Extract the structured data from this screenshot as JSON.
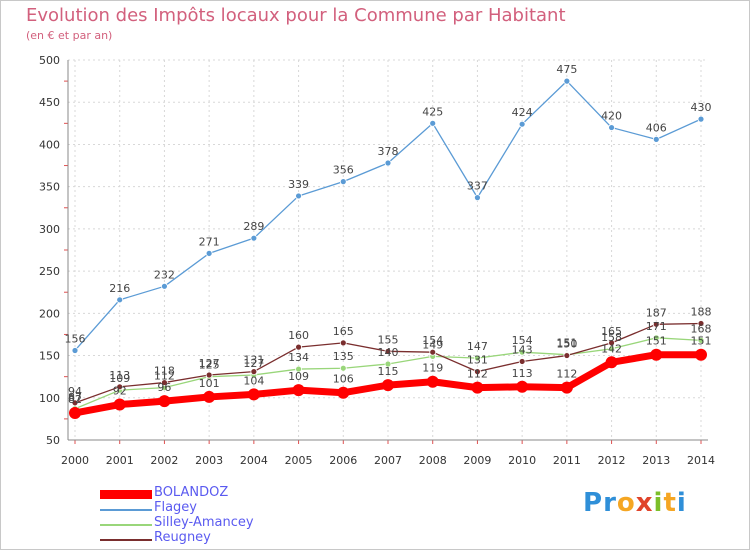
{
  "title": "Evolution des Impôts locaux pour la Commune par Habitant",
  "subtitle": "(en € et par an)",
  "logo": {
    "text": "Proxiti",
    "letters": [
      "P",
      "r",
      "o",
      "x",
      "i",
      "t",
      "i"
    ],
    "colors": [
      "#2f8fd8",
      "#2f8fd8",
      "#f5a623",
      "#e0442b",
      "#7cbf2a",
      "#f5a623",
      "#2f8fd8"
    ]
  },
  "chart_data": {
    "type": "line",
    "x": [
      "2000",
      "2001",
      "2002",
      "2003",
      "2004",
      "2005",
      "2006",
      "2007",
      "2008",
      "2009",
      "2010",
      "2011",
      "2012",
      "2013",
      "2014"
    ],
    "ylim": [
      50,
      500
    ],
    "yticks": [
      "50",
      "100",
      "150",
      "200",
      "250",
      "300",
      "350",
      "400",
      "450",
      "500"
    ],
    "grid": true,
    "series": [
      {
        "name": "Flagey",
        "color": "#5b9bd5",
        "values": [
          156,
          216,
          232,
          271,
          289,
          339,
          356,
          378,
          425,
          337,
          424,
          475,
          420,
          406,
          430
        ],
        "labels": [
          "156",
          "216",
          "232",
          "271",
          "289",
          "339",
          "356",
          "378",
          "425",
          "337",
          "424",
          "475",
          "420",
          "406",
          "430"
        ]
      },
      {
        "name": "Silley-Amancey",
        "color": "#99d67a",
        "values": [
          87,
          109,
          112,
          125,
          127,
          134,
          135,
          140,
          149,
          147,
          154,
          151,
          158,
          171,
          168
        ],
        "labels": [
          "87",
          "109",
          "112",
          "125",
          "127",
          "134",
          "135",
          "140",
          "149",
          "147",
          "154",
          "151",
          "158",
          "171",
          "168"
        ]
      },
      {
        "name": "Reugney",
        "color": "#7a2e2e",
        "values": [
          94,
          113,
          118,
          127,
          131,
          160,
          165,
          155,
          154,
          131,
          143,
          150,
          165,
          187,
          188
        ],
        "labels": [
          "94",
          "113",
          "118",
          "127",
          "131",
          "160",
          "165",
          "155",
          "154",
          "131",
          "143",
          "150",
          "165",
          "187",
          "188"
        ]
      },
      {
        "name": "BOLANDOZ",
        "color": "#ff0000",
        "values": [
          82,
          92,
          96,
          101,
          104,
          109,
          106,
          115,
          119,
          112,
          113,
          112,
          142,
          151,
          151
        ],
        "labels": [
          "82",
          "92",
          "96",
          "101",
          "104",
          "109",
          "106",
          "115",
          "119",
          "112",
          "113",
          "112",
          "142",
          "151",
          "151"
        ]
      }
    ],
    "legend": [
      {
        "name": "BOLANDOZ",
        "color": "#ff0000"
      },
      {
        "name": "Flagey",
        "color": "#5b9bd5"
      },
      {
        "name": "Silley-Amancey",
        "color": "#99d67a"
      },
      {
        "name": "Reugney",
        "color": "#7a2e2e"
      }
    ]
  }
}
